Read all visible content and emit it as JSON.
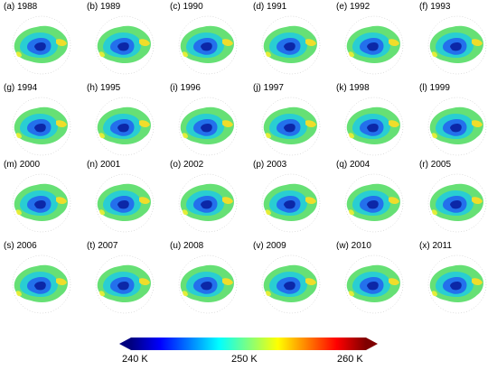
{
  "panels": [
    {
      "label": "(a) 1988"
    },
    {
      "label": "(b) 1989"
    },
    {
      "label": "(c) 1990"
    },
    {
      "label": "(d) 1991"
    },
    {
      "label": "(e) 1992"
    },
    {
      "label": "(f) 1993"
    },
    {
      "label": "(g) 1994"
    },
    {
      "label": "(h) 1995"
    },
    {
      "label": "(i) 1996"
    },
    {
      "label": "(j) 1997"
    },
    {
      "label": "(k) 1998"
    },
    {
      "label": "(l) 1999"
    },
    {
      "label": "(m) 2000"
    },
    {
      "label": "(n) 2001"
    },
    {
      "label": "(o) 2002"
    },
    {
      "label": "(p) 2003"
    },
    {
      "label": "(q) 2004"
    },
    {
      "label": "(r) 2005"
    },
    {
      "label": "(s) 2006"
    },
    {
      "label": "(t) 2007"
    },
    {
      "label": "(u) 2008"
    },
    {
      "label": "(v) 2009"
    },
    {
      "label": "(w) 2010"
    },
    {
      "label": "(x) 2011"
    }
  ],
  "colorbar": {
    "ticks": [
      "240 K",
      "250 K",
      "260 K"
    ],
    "colors": [
      "#00007f",
      "#0000ff",
      "#007fff",
      "#00ffff",
      "#7fff7f",
      "#ffff00",
      "#ff7f00",
      "#ff0000",
      "#7f0000"
    ]
  }
}
